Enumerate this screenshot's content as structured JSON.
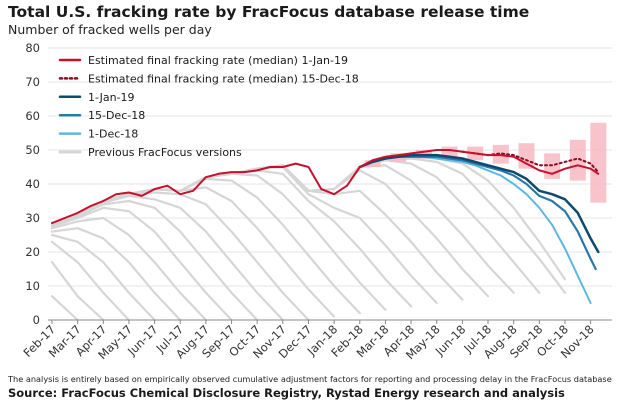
{
  "title": "Total U.S. fracking rate by FracFocus database release time",
  "subtitle": "Number of fracked wells per day",
  "footnote": "The analysis is entirely based on empirically observed cumulative adjustment factors for reporting and processing delay in the FracFocus database",
  "source": "Source: FracFocus Chemical Disclosure Registry, Rystad Energy research and analysis",
  "colors": {
    "median_final": "#c8102e",
    "median_prev": "#8b0c1e",
    "jan19": "#0e4a6e",
    "dec15": "#2878a8",
    "dec1": "#5bb8e0",
    "previous": "#d6d6d6",
    "box": "#f7b8c2"
  },
  "chart_data": {
    "type": "line",
    "ylim": [
      0,
      80
    ],
    "y_ticks": [
      0,
      10,
      20,
      30,
      40,
      50,
      60,
      70,
      80
    ],
    "x_tick_labels": [
      "Feb-17",
      "Mar-17",
      "Apr-17",
      "May-17",
      "Jun-17",
      "Jul-17",
      "Aug-17",
      "Sep-17",
      "Oct-17",
      "Nov-17",
      "Dec-17",
      "Jan-18",
      "Feb-18",
      "Mar-18",
      "Apr-18",
      "May-18",
      "Jun-18",
      "Jul-18",
      "Aug-18",
      "Sep-18",
      "Oct-18",
      "Nov-18"
    ],
    "x_range": [
      0,
      21.6
    ],
    "legend": {
      "position": "top-left",
      "items": [
        {
          "label": "Estimated final fracking rate (median) 1-Jan-19",
          "style": "solid",
          "color_key": "median_final"
        },
        {
          "label": "Estimated final fracking rate (median) 15-Dec-18",
          "style": "dotted",
          "color_key": "median_prev"
        },
        {
          "label": "1-Jan-19",
          "style": "solid",
          "color_key": "jan19"
        },
        {
          "label": "15-Dec-18",
          "style": "solid",
          "color_key": "dec15"
        },
        {
          "label": "1-Dec-18",
          "style": "solid",
          "color_key": "dec1"
        },
        {
          "label": "Previous FracFocus versions",
          "style": "solid",
          "color_key": "previous"
        }
      ]
    },
    "series": [
      {
        "key": "median_final",
        "x": [
          0,
          0.5,
          1,
          1.5,
          2,
          2.5,
          3,
          3.5,
          4,
          4.5,
          5,
          5.5,
          6,
          6.5,
          7,
          7.5,
          8,
          8.5,
          9,
          9.5,
          10,
          10.5,
          11,
          11.5,
          12,
          12.5,
          13,
          13.5,
          14,
          14.5,
          15,
          15.5,
          16,
          16.5,
          17,
          17.5,
          18,
          18.5,
          19,
          19.5,
          20,
          20.5,
          21,
          21.3
        ],
        "y": [
          28.5,
          30,
          31.5,
          33.5,
          35,
          37,
          37.5,
          36.5,
          38.5,
          39.5,
          37,
          38,
          42,
          43,
          43.5,
          43.5,
          44,
          45,
          45,
          46,
          45,
          38.5,
          37,
          39.5,
          45,
          47,
          48,
          48.5,
          49,
          49.5,
          50,
          50,
          49.5,
          49,
          48.5,
          48.5,
          48,
          46,
          44,
          43,
          44.5,
          45.5,
          44.5,
          43
        ]
      },
      {
        "key": "median_prev",
        "x": [
          16,
          16.5,
          17,
          17.5,
          18,
          18.5,
          19,
          19.5,
          20,
          20.5,
          21,
          21.3
        ],
        "y": [
          49.5,
          49,
          48.5,
          49,
          48.5,
          47,
          45.5,
          45.5,
          46.5,
          47.5,
          46,
          43.5
        ]
      },
      {
        "key": "jan19",
        "x": [
          12,
          12.5,
          13,
          13.5,
          14,
          14.5,
          15,
          15.5,
          16,
          16.5,
          17,
          17.5,
          18,
          18.5,
          19,
          19.5,
          20,
          20.5,
          21,
          21.3
        ],
        "y": [
          45,
          46.5,
          47.5,
          48,
          48.5,
          48.5,
          48.5,
          48,
          47.5,
          46.5,
          45.5,
          44.5,
          43.5,
          41.5,
          38,
          37,
          35.5,
          31.5,
          24,
          20
        ]
      },
      {
        "key": "dec15",
        "x": [
          12,
          12.5,
          13,
          13.5,
          14,
          14.5,
          15,
          15.5,
          16,
          16.5,
          17,
          17.5,
          18,
          18.5,
          19,
          19.5,
          20,
          20.5,
          21,
          21.2
        ],
        "y": [
          45,
          46.5,
          47.5,
          48,
          48,
          48,
          48,
          47.5,
          47,
          46,
          45,
          44,
          42.5,
          40,
          36.5,
          35,
          32,
          26,
          18,
          15
        ]
      },
      {
        "key": "dec1",
        "x": [
          12,
          12.5,
          13,
          13.5,
          14,
          14.5,
          15,
          15.5,
          16,
          16.5,
          17,
          17.5,
          18,
          18.5,
          19,
          19.5,
          20,
          20.5,
          21
        ],
        "y": [
          45,
          46.5,
          47.5,
          48,
          48,
          48,
          47.5,
          47,
          46.5,
          45.5,
          44,
          42.5,
          40,
          37,
          33,
          28,
          21,
          13,
          5
        ]
      }
    ],
    "uncertainty_boxes": [
      {
        "x": 12.5,
        "low": 45,
        "high": 47
      },
      {
        "x": 13.5,
        "low": 46.5,
        "high": 49
      },
      {
        "x": 14.5,
        "low": 47.5,
        "high": 50
      },
      {
        "x": 15.5,
        "low": 47.5,
        "high": 51
      },
      {
        "x": 16.5,
        "low": 47,
        "high": 51
      },
      {
        "x": 17.5,
        "low": 46,
        "high": 51.5
      },
      {
        "x": 18.5,
        "low": 44.5,
        "high": 52
      },
      {
        "x": 19.5,
        "low": 41.5,
        "high": 49
      },
      {
        "x": 20.5,
        "low": 41,
        "high": 53
      },
      {
        "x": 21.3,
        "low": 34.5,
        "high": 58
      }
    ],
    "previous_versions": [
      {
        "x": [
          0,
          1
        ],
        "y": [
          7,
          0
        ]
      },
      {
        "x": [
          0,
          1,
          2
        ],
        "y": [
          17,
          7,
          0
        ]
      },
      {
        "x": [
          0,
          1,
          2,
          3
        ],
        "y": [
          23,
          17,
          8,
          0
        ]
      },
      {
        "x": [
          0,
          1,
          2,
          3,
          4
        ],
        "y": [
          25,
          23,
          17,
          8,
          0
        ]
      },
      {
        "x": [
          0,
          1,
          2,
          3,
          4,
          5
        ],
        "y": [
          26,
          27,
          24,
          17,
          8,
          0
        ]
      },
      {
        "x": [
          0,
          1,
          2,
          3,
          4,
          5,
          6
        ],
        "y": [
          27,
          29,
          30,
          25,
          17,
          8,
          0
        ]
      },
      {
        "x": [
          0,
          1,
          2,
          3,
          4,
          5,
          6,
          7
        ],
        "y": [
          27.5,
          30,
          33,
          32,
          26,
          17,
          8,
          0
        ]
      },
      {
        "x": [
          0,
          1,
          2,
          3,
          4,
          5,
          6,
          7,
          8
        ],
        "y": [
          28,
          30.5,
          34,
          35,
          33,
          26,
          17,
          8,
          0
        ]
      },
      {
        "x": [
          0,
          1,
          2,
          3,
          4,
          5,
          6,
          7,
          8,
          9
        ],
        "y": [
          28,
          31,
          34.5,
          36.5,
          35.5,
          33,
          26,
          17,
          8,
          0
        ]
      },
      {
        "x": [
          0,
          1,
          2,
          3,
          4,
          5,
          6,
          7,
          8,
          9,
          10
        ],
        "y": [
          28,
          31,
          35,
          37,
          37.5,
          37,
          34,
          26,
          17,
          8,
          0
        ]
      },
      {
        "x": [
          0,
          1,
          2,
          3,
          4,
          5,
          6,
          7,
          8,
          9,
          10,
          11
        ],
        "y": [
          28,
          31,
          35,
          37,
          38.5,
          38,
          39,
          35,
          27,
          18,
          9,
          1
        ]
      },
      {
        "x": [
          0,
          1,
          2,
          3,
          4,
          5,
          6,
          7,
          8,
          9,
          10,
          11,
          12
        ],
        "y": [
          28,
          31,
          35,
          37,
          38.5,
          38,
          41.5,
          41,
          36,
          28,
          19,
          10,
          2
        ]
      },
      {
        "x": [
          0,
          1,
          2,
          3,
          4,
          5,
          6,
          7,
          8,
          9,
          10,
          11,
          12,
          13
        ],
        "y": [
          28,
          31,
          35,
          37,
          38.5,
          38,
          42,
          43,
          42.5,
          37,
          29,
          20,
          11,
          3
        ]
      },
      {
        "x": [
          0,
          1,
          2,
          3,
          4,
          5,
          6,
          7,
          8,
          9,
          10,
          11,
          12,
          13,
          14
        ],
        "y": [
          28,
          31,
          35,
          37,
          38.5,
          38,
          42,
          43,
          44,
          43,
          35,
          29,
          21,
          12,
          4
        ]
      },
      {
        "x": [
          0,
          1,
          2,
          3,
          4,
          5,
          6,
          7,
          8,
          9,
          10,
          11,
          12,
          13,
          14,
          15
        ],
        "y": [
          28,
          31,
          35,
          37,
          38.5,
          38,
          42,
          43,
          44.5,
          45,
          37,
          33,
          30,
          22,
          13,
          5
        ]
      },
      {
        "x": [
          0,
          1,
          2,
          3,
          4,
          5,
          6,
          7,
          8,
          9,
          10,
          11,
          12,
          13,
          14,
          15,
          16
        ],
        "y": [
          28,
          31,
          35,
          37,
          38.5,
          38,
          42,
          43,
          44.5,
          45.5,
          38,
          37,
          38,
          31,
          23,
          14,
          6
        ]
      },
      {
        "x": [
          0,
          1,
          2,
          3,
          4,
          5,
          6,
          7,
          8,
          9,
          10,
          11,
          12,
          13,
          14,
          15,
          16,
          17
        ],
        "y": [
          28,
          31,
          35,
          37,
          38.5,
          38,
          42,
          43,
          44.5,
          45.5,
          38,
          38.5,
          44,
          40,
          32,
          24,
          15,
          7
        ]
      },
      {
        "x": [
          0,
          1,
          2,
          3,
          4,
          5,
          6,
          7,
          8,
          9,
          10,
          11,
          12,
          13,
          14,
          15,
          16,
          17,
          18
        ],
        "y": [
          28,
          31,
          35,
          37,
          38.5,
          38,
          42,
          43,
          44.5,
          45.5,
          38,
          38.5,
          45,
          45.5,
          41,
          33,
          25,
          16,
          8
        ]
      },
      {
        "x": [
          0,
          1,
          2,
          3,
          4,
          5,
          6,
          7,
          8,
          9,
          10,
          11,
          12,
          13,
          14,
          15,
          16,
          17,
          18,
          19
        ],
        "y": [
          28,
          31,
          35,
          37,
          38.5,
          38,
          42,
          43,
          44.5,
          45.5,
          38,
          38.5,
          45,
          47,
          46,
          42,
          34,
          26,
          17,
          8
        ]
      },
      {
        "x": [
          0,
          1,
          2,
          3,
          4,
          5,
          6,
          7,
          8,
          9,
          10,
          11,
          12,
          13,
          14,
          15,
          16,
          17,
          18,
          19,
          20
        ],
        "y": [
          28,
          31,
          35,
          37,
          38.5,
          38,
          42,
          43,
          44.5,
          45.5,
          38,
          38.5,
          45,
          47,
          47.5,
          46.5,
          43,
          35,
          27,
          18,
          8
        ]
      },
      {
        "x": [
          0,
          1,
          2,
          3,
          4,
          5,
          6,
          7,
          8,
          9,
          10,
          11,
          12,
          13,
          14,
          15,
          16,
          17,
          18,
          19,
          20
        ],
        "y": [
          28,
          31,
          35,
          37,
          38.5,
          38,
          42,
          43,
          44.5,
          45.5,
          38,
          38.5,
          45,
          47,
          48,
          47.5,
          46,
          41,
          33,
          23,
          12
        ]
      }
    ]
  }
}
